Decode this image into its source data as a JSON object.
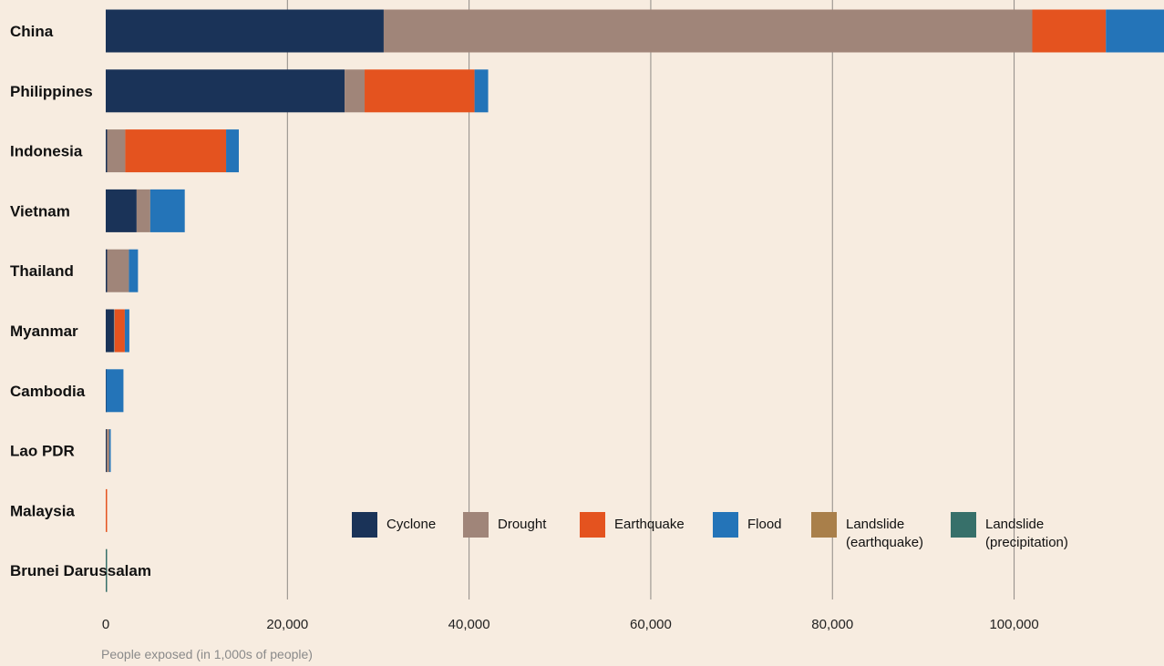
{
  "chart_data": {
    "type": "bar",
    "orientation": "horizontal",
    "stacked": true,
    "categories": [
      "China",
      "Philippines",
      "Indonesia",
      "Vietnam",
      "Thailand",
      "Myanmar",
      "Cambodia",
      "Lao PDR",
      "Malaysia",
      "Brunei Darussalam"
    ],
    "series": [
      {
        "name": "Cyclone",
        "color": "#1a3358",
        "values": [
          30600,
          26300,
          150,
          3400,
          150,
          900,
          50,
          100,
          0,
          0
        ]
      },
      {
        "name": "Drought",
        "color": "#a08579",
        "values": [
          71400,
          2200,
          2000,
          1500,
          2400,
          100,
          0,
          300,
          0,
          0
        ]
      },
      {
        "name": "Earthquake",
        "color": "#e4531f",
        "values": [
          8100,
          12100,
          11100,
          0,
          0,
          1100,
          0,
          0,
          100,
          0
        ]
      },
      {
        "name": "Flood",
        "color": "#2474b8",
        "values": [
          8000,
          1500,
          1400,
          3800,
          1000,
          500,
          1900,
          100,
          0,
          0
        ]
      },
      {
        "name": "Landslide\n(earthquake)",
        "color": "#a97f4a",
        "values": [
          0,
          0,
          0,
          0,
          0,
          0,
          0,
          0,
          0,
          0
        ]
      },
      {
        "name": "Landslide\n(precipitation)",
        "color": "#37706a",
        "values": [
          0,
          0,
          0,
          0,
          0,
          0,
          0,
          0,
          0,
          50
        ]
      }
    ],
    "xticks": [
      0,
      20000,
      40000,
      60000,
      80000,
      100000
    ],
    "xtick_labels": [
      "0",
      "20,000",
      "40,000",
      "60,000",
      "80,000",
      "100,000"
    ],
    "xlim": [
      0,
      116500
    ],
    "xlabel": "People exposed (in 1,000s of people)",
    "grid": "vertical",
    "legend_position": "bottom-right"
  }
}
